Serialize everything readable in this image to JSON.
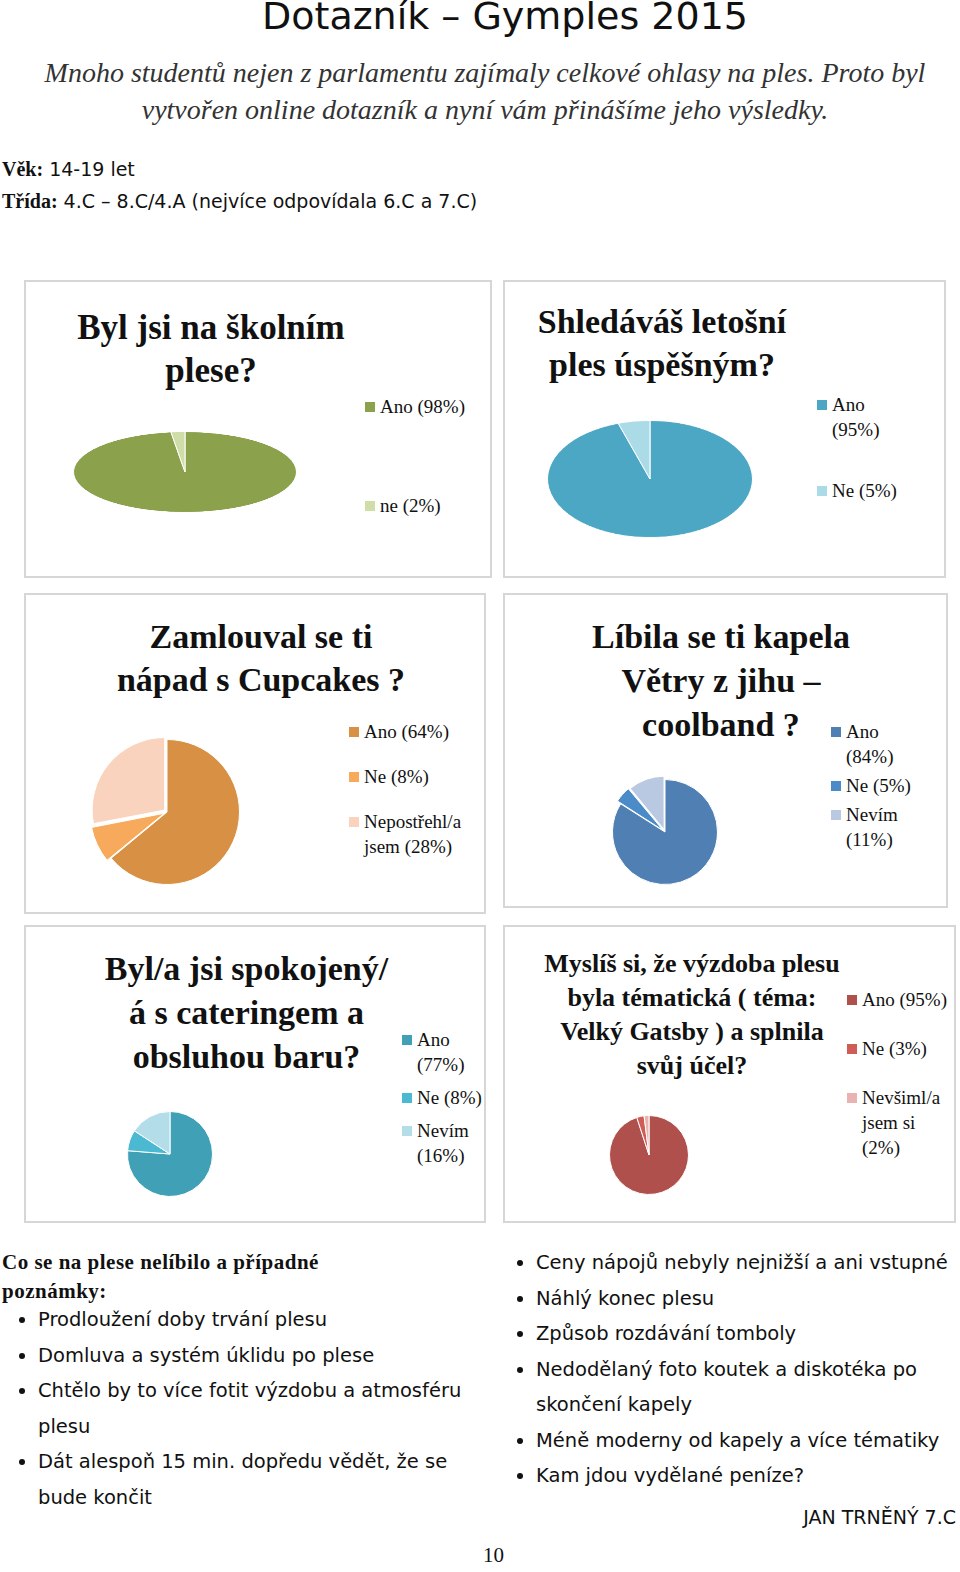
{
  "header": {
    "title": "Dotazník – Gymples 2015",
    "intro": "Mnoho studentů nejen z parlamentu zajímaly celkové ohlasy na ples. Proto byl vytvořen online dotazník a nyní vám přinášíme jeho výsledky.",
    "age_label": "Věk:",
    "age": "14-19 let",
    "class_label": "Třída:",
    "class": "4.C – 8.C/4.A (nejvíce odpovídala 6.C a 7.C)"
  },
  "chart_data": [
    {
      "type": "pie",
      "title": "Byl jsi na školním\nplese?",
      "categories": [
        "Ano (98%)",
        "ne (2%)"
      ],
      "values": [
        98,
        2
      ],
      "colors": [
        "#8ba14c",
        "#cfdda8"
      ],
      "legend": "right"
    },
    {
      "type": "pie",
      "title": "Shledáváš letošní\nples úspěšným?",
      "categories": [
        "Ano (95%)",
        "Ne (5%)"
      ],
      "values": [
        95,
        5
      ],
      "colors": [
        "#4ba7c3",
        "#acdbe8"
      ],
      "legend": "right"
    },
    {
      "type": "pie",
      "title": "Zamlouval se ti\nnápad s Cupcakes ?",
      "categories": [
        "Ano (64%)",
        "Ne (8%)",
        "Nepostřehl/a jsem (28%)"
      ],
      "values": [
        64,
        8,
        28
      ],
      "colors": [
        "#d89044",
        "#f8aa5c",
        "#f9d3bd"
      ],
      "legend": "right"
    },
    {
      "type": "pie",
      "title": "Líbila se ti kapela\nVětry z jihu –\ncoolband ?",
      "categories": [
        "Ano (84%)",
        "Ne (5%)",
        "Nevím (11%)"
      ],
      "values": [
        84,
        5,
        11
      ],
      "colors": [
        "#4f7fb3",
        "#4a8bc8",
        "#b8c9e1"
      ],
      "legend": "right"
    },
    {
      "type": "pie",
      "title": "Byl/a jsi spokojený/\ná s cateringem a\nobsluhou baru?",
      "categories": [
        "Ano (77%)",
        "Ne (8%)",
        "Nevím (16%)"
      ],
      "values": [
        77,
        8,
        16
      ],
      "colors": [
        "#40a0b6",
        "#4ab9d1",
        "#b3dde9"
      ],
      "legend": "right"
    },
    {
      "type": "pie",
      "title": "Myslíš si, že výzdoba plesu\nbyla tématická ( téma:\nVelký Gatsby ) a splnila\nsvůj účel?",
      "categories": [
        "Ano (95%)",
        "Ne (3%)",
        "Nevšiml/a jsem si (2%)"
      ],
      "values": [
        95,
        3,
        2
      ],
      "colors": [
        "#b0504c",
        "#d05c57",
        "#e8b3b1"
      ],
      "legend": "right"
    }
  ],
  "notes": {
    "heading": "Co se na plese nelíbilo a případné poznámky:",
    "left": [
      "Prodloužení doby trvání plesu",
      "Domluva a systém úklidu po plese",
      "Chtělo by to více fotit výzdobu a atmosféru plesu",
      "Dát alespoň 15 min. dopředu vědět, že se bude končit"
    ],
    "right": [
      "Ceny nápojů nebyly nejnižší a ani vstupné",
      "Náhlý konec plesu",
      "Způsob rozdávání tomboly",
      "Nedodělaný foto koutek a diskotéka po skončení kapely",
      "Méně moderny od kapely a více tématiky",
      "Kam jdou vydělané peníze?"
    ]
  },
  "author": "JAN TRNĚNÝ 7.C",
  "page_number": "10"
}
